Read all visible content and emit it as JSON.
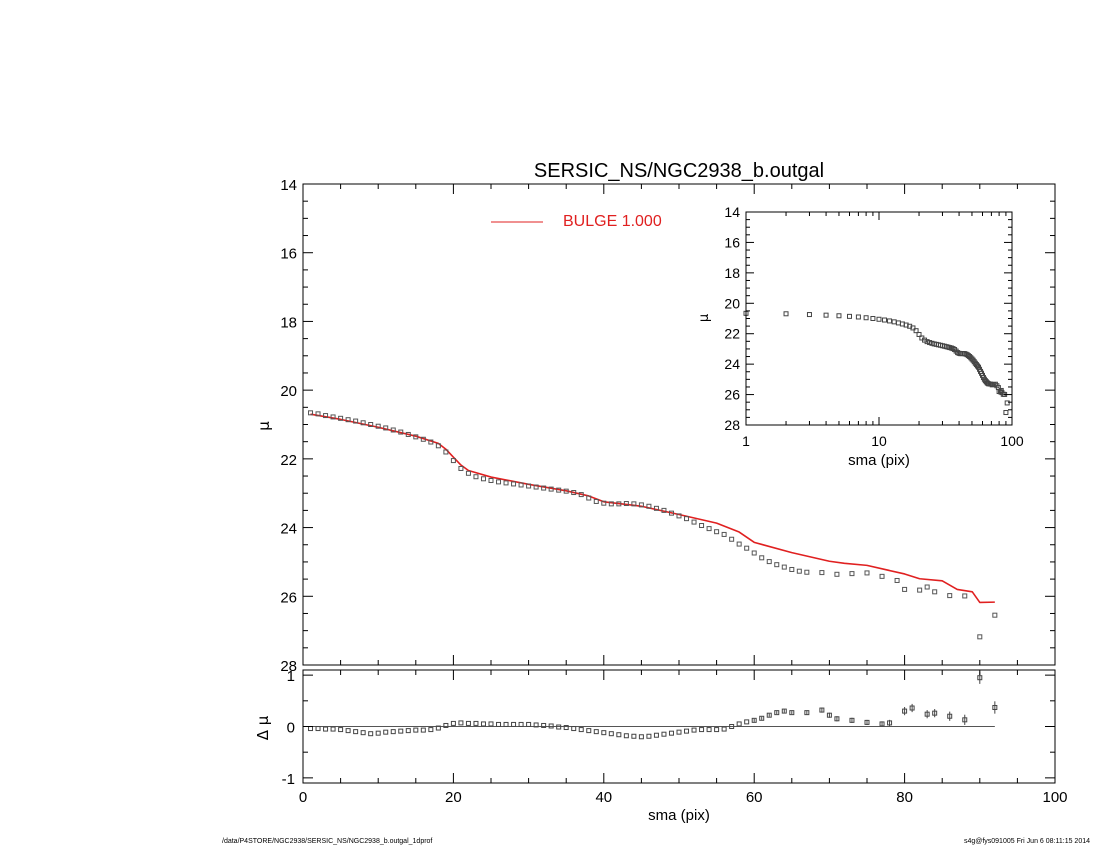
{
  "chart_data": {
    "type": "scatter",
    "title": "SERSIC_NS/NGC2938_b.outgal",
    "main_panel": {
      "xlabel": "sma (pix)",
      "ylabel": "μ",
      "xlim": [
        0,
        100
      ],
      "ylim": [
        28,
        14
      ],
      "x_ticks": [
        0,
        20,
        40,
        60,
        80,
        100
      ],
      "y_ticks": [
        14,
        16,
        18,
        20,
        22,
        24,
        26,
        28
      ],
      "legend": {
        "label": "BULGE  1.000",
        "color": "#e02020",
        "placement": "top-center"
      },
      "data_color": "#555555",
      "model_color": "#e02020",
      "data_points": [
        [
          1,
          20.66
        ],
        [
          2,
          20.69
        ],
        [
          3,
          20.74
        ],
        [
          4,
          20.78
        ],
        [
          5,
          20.82
        ],
        [
          6,
          20.86
        ],
        [
          7,
          20.9
        ],
        [
          8,
          20.95
        ],
        [
          9,
          21.0
        ],
        [
          10,
          21.05
        ],
        [
          11,
          21.1
        ],
        [
          12,
          21.16
        ],
        [
          13,
          21.22
        ],
        [
          14,
          21.29
        ],
        [
          15,
          21.36
        ],
        [
          16,
          21.43
        ],
        [
          17,
          21.51
        ],
        [
          18,
          21.62
        ],
        [
          19,
          21.8
        ],
        [
          20,
          22.05
        ],
        [
          21,
          22.28
        ],
        [
          22,
          22.42
        ],
        [
          23,
          22.52
        ],
        [
          24,
          22.58
        ],
        [
          25,
          22.63
        ],
        [
          26,
          22.67
        ],
        [
          27,
          22.7
        ],
        [
          28,
          22.73
        ],
        [
          29,
          22.76
        ],
        [
          30,
          22.79
        ],
        [
          31,
          22.82
        ],
        [
          32,
          22.85
        ],
        [
          33,
          22.88
        ],
        [
          34,
          22.91
        ],
        [
          35,
          22.94
        ],
        [
          36,
          22.98
        ],
        [
          37,
          23.04
        ],
        [
          38,
          23.14
        ],
        [
          39,
          23.24
        ],
        [
          40,
          23.29
        ],
        [
          41,
          23.31
        ],
        [
          42,
          23.31
        ],
        [
          43,
          23.3
        ],
        [
          44,
          23.31
        ],
        [
          45,
          23.34
        ],
        [
          46,
          23.38
        ],
        [
          47,
          23.44
        ],
        [
          48,
          23.5
        ],
        [
          49,
          23.58
        ],
        [
          50,
          23.66
        ],
        [
          51,
          23.74
        ],
        [
          52,
          23.84
        ],
        [
          53,
          23.94
        ],
        [
          54,
          24.03
        ],
        [
          55,
          24.12
        ],
        [
          56,
          24.2
        ],
        [
          57,
          24.34
        ],
        [
          58,
          24.48
        ],
        [
          59,
          24.6
        ],
        [
          60,
          24.74
        ],
        [
          61,
          24.88
        ],
        [
          62,
          24.99
        ],
        [
          63,
          25.08
        ],
        [
          64,
          25.15
        ],
        [
          65,
          25.22
        ],
        [
          66,
          25.27
        ],
        [
          67,
          25.3
        ],
        [
          69,
          25.31
        ],
        [
          71,
          25.36
        ],
        [
          73,
          25.34
        ],
        [
          75,
          25.32
        ],
        [
          77,
          25.42
        ],
        [
          79,
          25.54
        ],
        [
          80,
          25.8
        ],
        [
          82,
          25.82
        ],
        [
          83,
          25.73
        ],
        [
          84,
          25.87
        ],
        [
          86,
          25.98
        ],
        [
          88,
          25.99
        ],
        [
          90,
          27.18
        ],
        [
          92,
          26.55
        ]
      ],
      "model_points": [
        [
          1,
          20.7
        ],
        [
          5,
          20.85
        ],
        [
          10,
          21.08
        ],
        [
          15,
          21.34
        ],
        [
          18,
          21.55
        ],
        [
          19,
          21.72
        ],
        [
          20,
          21.95
        ],
        [
          21,
          22.18
        ],
        [
          22,
          22.34
        ],
        [
          25,
          22.53
        ],
        [
          30,
          22.74
        ],
        [
          35,
          22.93
        ],
        [
          38,
          23.08
        ],
        [
          40,
          23.25
        ],
        [
          42,
          23.3
        ],
        [
          45,
          23.38
        ],
        [
          50,
          23.62
        ],
        [
          55,
          23.87
        ],
        [
          58,
          24.13
        ],
        [
          60,
          24.43
        ],
        [
          65,
          24.73
        ],
        [
          70,
          24.98
        ],
        [
          72,
          25.04
        ],
        [
          75,
          25.1
        ],
        [
          80,
          25.35
        ],
        [
          82,
          25.49
        ],
        [
          85,
          25.55
        ],
        [
          87,
          25.8
        ],
        [
          89,
          25.87
        ],
        [
          90,
          26.18
        ],
        [
          92,
          26.17
        ]
      ]
    },
    "residual_panel": {
      "ylabel": "Δ μ",
      "xlim": [
        0,
        100
      ],
      "ylim": [
        -1.1,
        1.1
      ],
      "y_ticks": [
        -1,
        0,
        1
      ],
      "reference_line": {
        "value": 0,
        "x_end": 92
      },
      "points": [
        [
          1,
          -0.04,
          0.02
        ],
        [
          2,
          -0.04,
          0.02
        ],
        [
          3,
          -0.05,
          0.02
        ],
        [
          4,
          -0.05,
          0.02
        ],
        [
          5,
          -0.06,
          0.02
        ],
        [
          6,
          -0.08,
          0.02
        ],
        [
          7,
          -0.1,
          0.02
        ],
        [
          8,
          -0.12,
          0.02
        ],
        [
          9,
          -0.14,
          0.02
        ],
        [
          10,
          -0.13,
          0.02
        ],
        [
          11,
          -0.11,
          0.02
        ],
        [
          12,
          -0.1,
          0.02
        ],
        [
          13,
          -0.09,
          0.02
        ],
        [
          14,
          -0.08,
          0.02
        ],
        [
          15,
          -0.07,
          0.02
        ],
        [
          16,
          -0.07,
          0.02
        ],
        [
          17,
          -0.06,
          0.02
        ],
        [
          18,
          -0.03,
          0.02
        ],
        [
          19,
          0.02,
          0.02
        ],
        [
          20,
          0.06,
          0.02
        ],
        [
          21,
          0.07,
          0.02
        ],
        [
          22,
          0.06,
          0.02
        ],
        [
          23,
          0.06,
          0.02
        ],
        [
          24,
          0.05,
          0.02
        ],
        [
          25,
          0.05,
          0.02
        ],
        [
          26,
          0.04,
          0.02
        ],
        [
          27,
          0.04,
          0.02
        ],
        [
          28,
          0.04,
          0.02
        ],
        [
          29,
          0.04,
          0.02
        ],
        [
          30,
          0.04,
          0.02
        ],
        [
          31,
          0.03,
          0.02
        ],
        [
          32,
          0.02,
          0.02
        ],
        [
          33,
          0.01,
          0.02
        ],
        [
          34,
          -0.01,
          0.02
        ],
        [
          35,
          -0.02,
          0.02
        ],
        [
          36,
          -0.04,
          0.02
        ],
        [
          37,
          -0.06,
          0.02
        ],
        [
          38,
          -0.08,
          0.02
        ],
        [
          39,
          -0.1,
          0.02
        ],
        [
          40,
          -0.12,
          0.02
        ],
        [
          41,
          -0.14,
          0.02
        ],
        [
          42,
          -0.16,
          0.02
        ],
        [
          43,
          -0.18,
          0.02
        ],
        [
          44,
          -0.19,
          0.02
        ],
        [
          45,
          -0.2,
          0.02
        ],
        [
          46,
          -0.19,
          0.02
        ],
        [
          47,
          -0.17,
          0.02
        ],
        [
          48,
          -0.15,
          0.02
        ],
        [
          49,
          -0.13,
          0.02
        ],
        [
          50,
          -0.11,
          0.02
        ],
        [
          51,
          -0.09,
          0.02
        ],
        [
          52,
          -0.07,
          0.02
        ],
        [
          53,
          -0.06,
          0.02
        ],
        [
          54,
          -0.06,
          0.02
        ],
        [
          55,
          -0.06,
          0.02
        ],
        [
          56,
          -0.05,
          0.02
        ],
        [
          57,
          0.0,
          0.02
        ],
        [
          58,
          0.05,
          0.02
        ],
        [
          59,
          0.09,
          0.02
        ],
        [
          60,
          0.12,
          0.03
        ],
        [
          61,
          0.16,
          0.03
        ],
        [
          62,
          0.22,
          0.03
        ],
        [
          63,
          0.27,
          0.03
        ],
        [
          64,
          0.3,
          0.03
        ],
        [
          65,
          0.27,
          0.03
        ],
        [
          67,
          0.27,
          0.04
        ],
        [
          69,
          0.32,
          0.05
        ],
        [
          70,
          0.22,
          0.05
        ],
        [
          71,
          0.15,
          0.05
        ],
        [
          73,
          0.12,
          0.05
        ],
        [
          75,
          0.08,
          0.05
        ],
        [
          77,
          0.05,
          0.05
        ],
        [
          78,
          0.07,
          0.06
        ],
        [
          80,
          0.3,
          0.08
        ],
        [
          81,
          0.36,
          0.08
        ],
        [
          83,
          0.24,
          0.08
        ],
        [
          84,
          0.26,
          0.08
        ],
        [
          86,
          0.2,
          0.09
        ],
        [
          88,
          0.13,
          0.1
        ],
        [
          90,
          0.95,
          0.12
        ],
        [
          92,
          0.37,
          0.12
        ]
      ]
    },
    "inset_panel": {
      "xlabel": "sma (pix)",
      "ylabel": "μ",
      "xscale": "log",
      "xlim": [
        1,
        100
      ],
      "ylim": [
        28,
        14
      ],
      "x_ticks": [
        1,
        10,
        100
      ],
      "y_ticks": [
        14,
        16,
        18,
        20,
        22,
        24,
        26,
        28
      ]
    }
  },
  "footer": {
    "left": "/data/P4STORE/NGC2938/SERSIC_NS/NGC2938_b.outgal_1dprof",
    "right": "s4g@fys091005  Fri Jun  6 08:11:15 2014"
  }
}
